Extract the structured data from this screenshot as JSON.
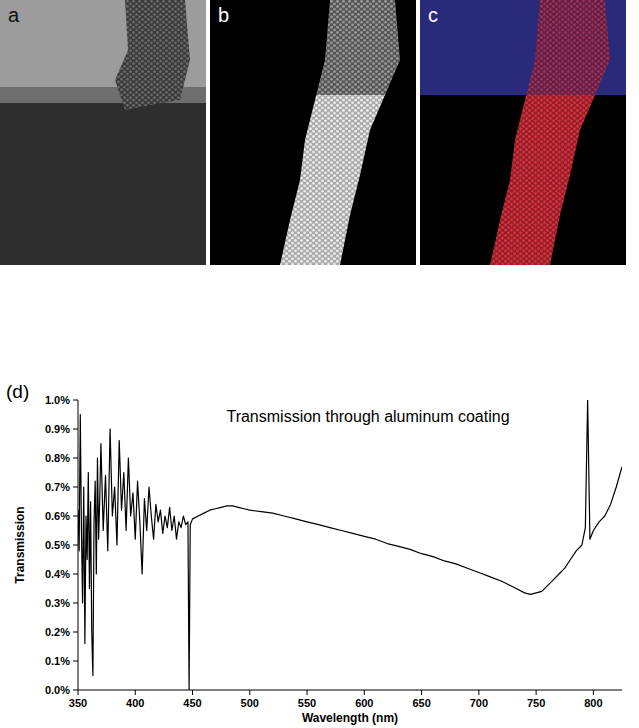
{
  "figure": {
    "panel_labels": [
      "a",
      "b",
      "c"
    ]
  },
  "chart_data": {
    "type": "line",
    "panel_label": "(d)",
    "title": "Transmission through aluminum coating",
    "x_label": "Wavelength (nm)",
    "y_label": "Transmission",
    "color": "#000000",
    "grid": false,
    "x": [
      350,
      351,
      352,
      353,
      354,
      355,
      356,
      357,
      358,
      359,
      360,
      361,
      362,
      363,
      364,
      365,
      366,
      367,
      368,
      369,
      370,
      372,
      374,
      376,
      378,
      380,
      382,
      384,
      386,
      388,
      390,
      392,
      394,
      396,
      398,
      400,
      402,
      404,
      406,
      408,
      410,
      412,
      414,
      416,
      418,
      420,
      422,
      424,
      426,
      428,
      430,
      432,
      434,
      436,
      438,
      440,
      442,
      444,
      446,
      447,
      448,
      450,
      455,
      460,
      465,
      470,
      475,
      480,
      485,
      490,
      495,
      500,
      510,
      520,
      530,
      540,
      550,
      560,
      570,
      580,
      590,
      600,
      610,
      620,
      630,
      640,
      650,
      660,
      670,
      680,
      690,
      700,
      710,
      720,
      730,
      740,
      745,
      750,
      755,
      760,
      765,
      770,
      775,
      780,
      785,
      790,
      793,
      795,
      797,
      800,
      805,
      810,
      815,
      820,
      825
    ],
    "values": [
      0.62,
      0.48,
      0.95,
      0.55,
      0.3,
      0.7,
      0.16,
      0.6,
      0.45,
      0.75,
      0.35,
      0.65,
      0.2,
      0.05,
      0.58,
      0.72,
      0.4,
      0.8,
      0.52,
      0.66,
      0.85,
      0.55,
      0.74,
      0.48,
      0.9,
      0.6,
      0.7,
      0.5,
      0.86,
      0.62,
      0.75,
      0.55,
      0.8,
      0.6,
      0.68,
      0.52,
      0.72,
      0.58,
      0.4,
      0.66,
      0.55,
      0.7,
      0.6,
      0.52,
      0.64,
      0.58,
      0.62,
      0.54,
      0.6,
      0.56,
      0.63,
      0.55,
      0.6,
      0.52,
      0.58,
      0.56,
      0.6,
      0.57,
      0.58,
      0.0,
      0.57,
      0.59,
      0.6,
      0.61,
      0.62,
      0.625,
      0.63,
      0.635,
      0.635,
      0.63,
      0.625,
      0.62,
      0.615,
      0.61,
      0.6,
      0.59,
      0.58,
      0.57,
      0.56,
      0.55,
      0.54,
      0.53,
      0.52,
      0.505,
      0.495,
      0.485,
      0.47,
      0.46,
      0.445,
      0.435,
      0.42,
      0.405,
      0.39,
      0.375,
      0.355,
      0.335,
      0.33,
      0.335,
      0.34,
      0.36,
      0.38,
      0.4,
      0.42,
      0.45,
      0.48,
      0.5,
      0.56,
      1.0,
      0.52,
      0.55,
      0.58,
      0.6,
      0.64,
      0.7,
      0.77
    ],
    "xlim": [
      350,
      825
    ],
    "xticks": [
      350,
      400,
      450,
      500,
      550,
      600,
      650,
      700,
      750,
      800
    ],
    "ylim": [
      0,
      1.0
    ],
    "yticks": [
      {
        "value": 0,
        "label": "0.0%"
      },
      {
        "value": 0.1,
        "label": "0.1%"
      },
      {
        "value": 0.2,
        "label": "0.2%"
      },
      {
        "value": 0.3,
        "label": "0.3%"
      },
      {
        "value": 0.4,
        "label": "0.4%"
      },
      {
        "value": 0.5,
        "label": "0.5%"
      },
      {
        "value": 0.6,
        "label": "0.6%"
      },
      {
        "value": 0.7,
        "label": "0.7%"
      },
      {
        "value": 0.8,
        "label": "0.8%"
      },
      {
        "value": 0.9,
        "label": "0.9%"
      },
      {
        "value": 1.0,
        "label": "1.0%"
      }
    ]
  }
}
